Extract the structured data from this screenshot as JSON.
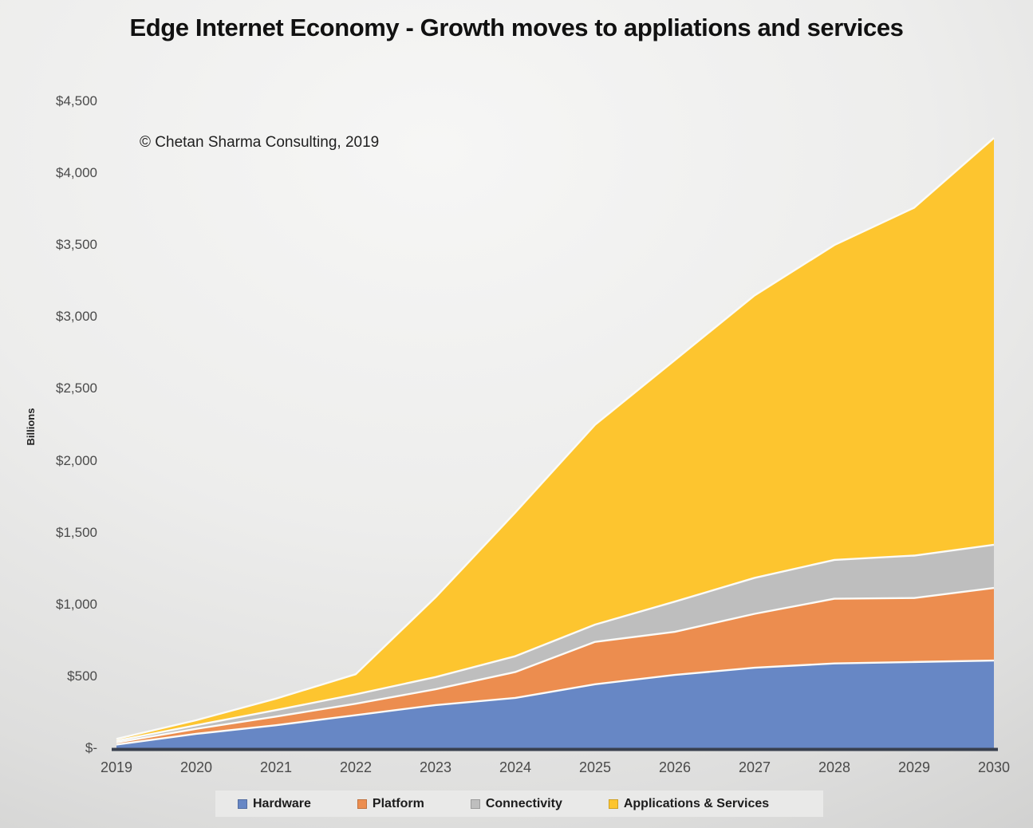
{
  "title": "Edge Internet Economy - Growth moves to appliations and services",
  "copyright": "© Chetan Sharma Consulting, 2019",
  "chart_data": {
    "type": "area",
    "stacked": true,
    "title": "Edge Internet Economy - Growth moves to appliations and services",
    "ylabel": "Billions",
    "xlabel": "",
    "x": [
      2019,
      2020,
      2021,
      2022,
      2023,
      2024,
      2025,
      2026,
      2027,
      2028,
      2029,
      2030
    ],
    "series": [
      {
        "name": "Hardware",
        "color": "#6787c5",
        "values": [
          25,
          100,
          160,
          230,
          300,
          350,
          445,
          510,
          560,
          590,
          600,
          610
        ]
      },
      {
        "name": "Platform",
        "color": "#ec8d4f",
        "values": [
          15,
          35,
          60,
          80,
          110,
          180,
          295,
          300,
          375,
          450,
          445,
          505
        ]
      },
      {
        "name": "Connectivity",
        "color": "#bebebe",
        "values": [
          12,
          25,
          45,
          65,
          85,
          110,
          120,
          210,
          250,
          270,
          295,
          300
        ]
      },
      {
        "name": "Applications & Services",
        "color": "#fdc52f",
        "values": [
          13,
          35,
          80,
          140,
          555,
          1000,
          1390,
          1680,
          1965,
          2190,
          2420,
          2830
        ]
      }
    ],
    "y_ticks": [
      {
        "value": 0,
        "label": "$-"
      },
      {
        "value": 500,
        "label": "$500"
      },
      {
        "value": 1000,
        "label": "$1,000"
      },
      {
        "value": 1500,
        "label": "$1,500"
      },
      {
        "value": 2000,
        "label": "$2,000"
      },
      {
        "value": 2500,
        "label": "$2,500"
      },
      {
        "value": 3000,
        "label": "$3,000"
      },
      {
        "value": 3500,
        "label": "$3,500"
      },
      {
        "value": 4000,
        "label": "$4,000"
      },
      {
        "value": 4500,
        "label": "$4,500"
      }
    ],
    "ylim": [
      0,
      4500
    ],
    "grid": false,
    "legend_position": "bottom",
    "axis_line_color": "#39404e",
    "band_separator_color": "#fbfbf8"
  }
}
